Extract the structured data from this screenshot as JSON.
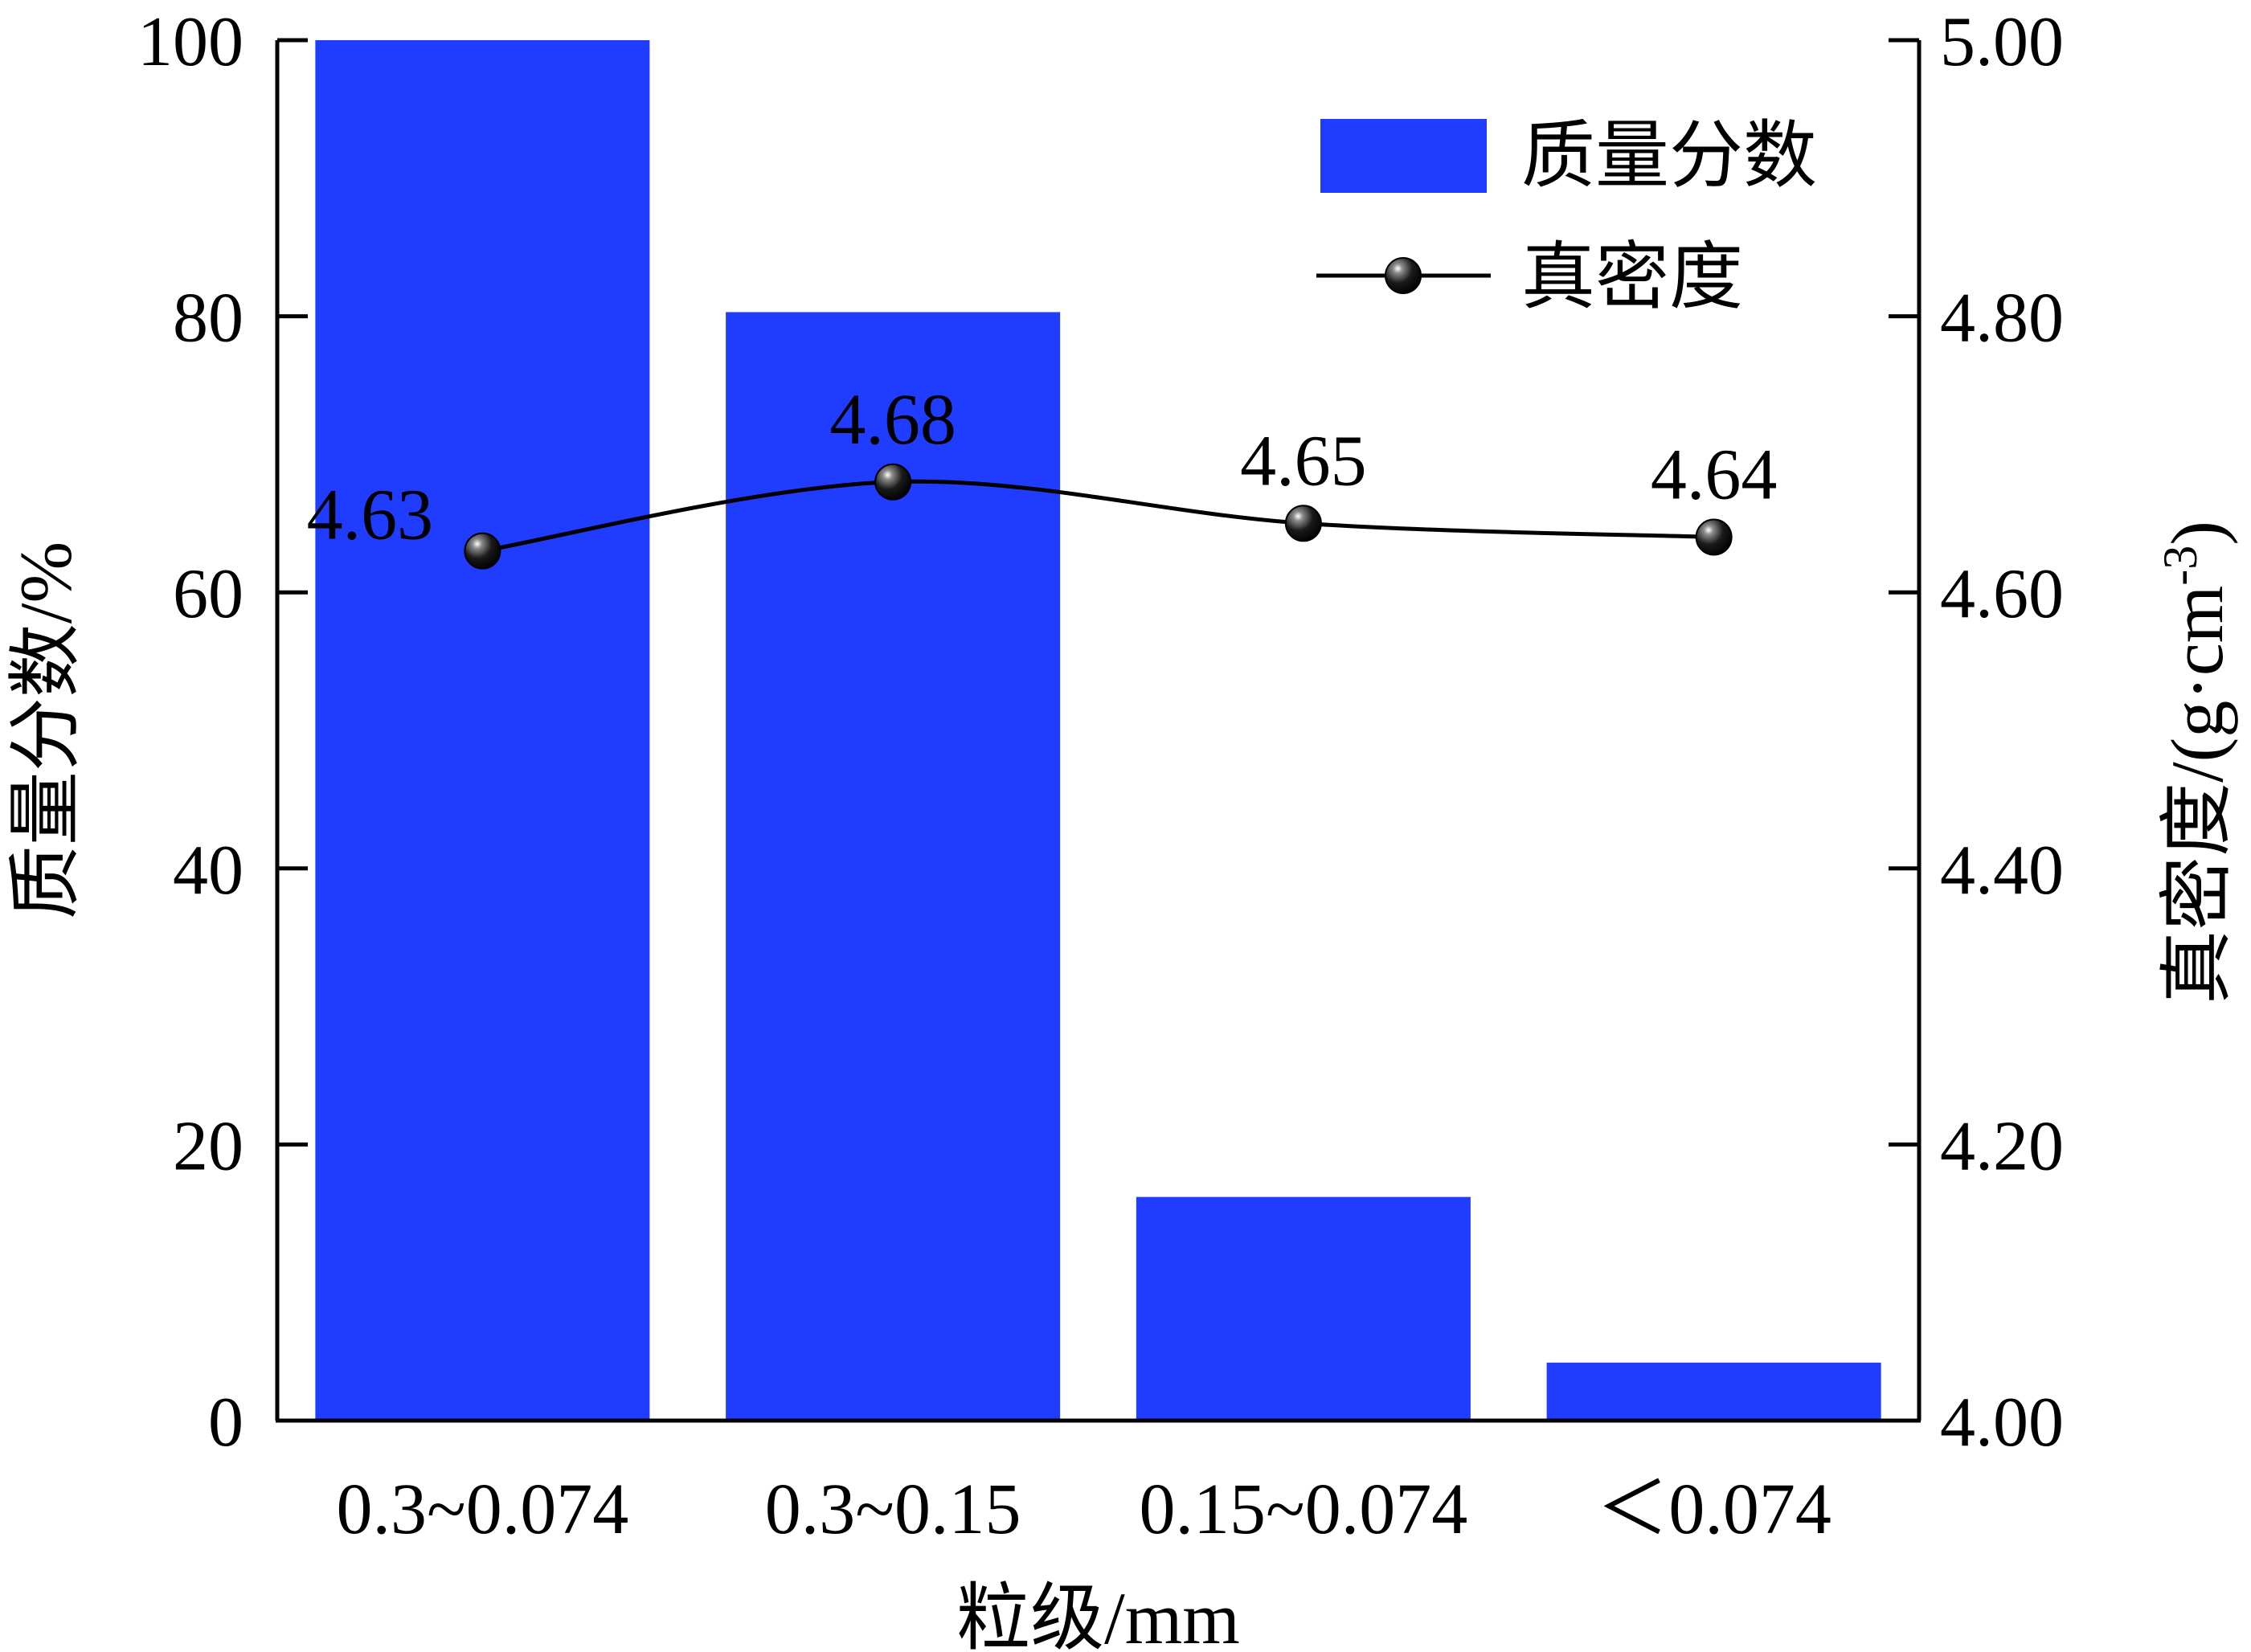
{
  "chart_data": {
    "type": "bar",
    "categories": [
      "0.3~0.074",
      "0.3~0.15",
      "0.15~0.074",
      "＜0.074"
    ],
    "xlabel": "粒级/mm",
    "series": [
      {
        "name": "质量分数",
        "type": "bar",
        "axis": "left",
        "color": "#1f3cff",
        "values": [
          100,
          80.3,
          16.2,
          4.2
        ]
      },
      {
        "name": "真密度",
        "type": "line",
        "axis": "right",
        "color": "#000000",
        "values": [
          4.63,
          4.68,
          4.65,
          4.64
        ],
        "data_labels": [
          "4.63",
          "4.68",
          "4.65",
          "4.64"
        ]
      }
    ],
    "y_left": {
      "label": "质量分数/%",
      "ylim": [
        0,
        100
      ],
      "ticks": [
        "0",
        "20",
        "40",
        "60",
        "80",
        "100"
      ]
    },
    "y_right": {
      "label_main": "真密度/(g·cm",
      "label_sup": "-3",
      "label_close": ")",
      "ylim": [
        4.0,
        5.0
      ],
      "ticks": [
        "4.00",
        "4.20",
        "4.40",
        "4.60",
        "4.80",
        "5.00"
      ]
    },
    "legend": {
      "position": "top-right",
      "items": [
        "质量分数",
        "真密度"
      ]
    },
    "grid": false
  }
}
